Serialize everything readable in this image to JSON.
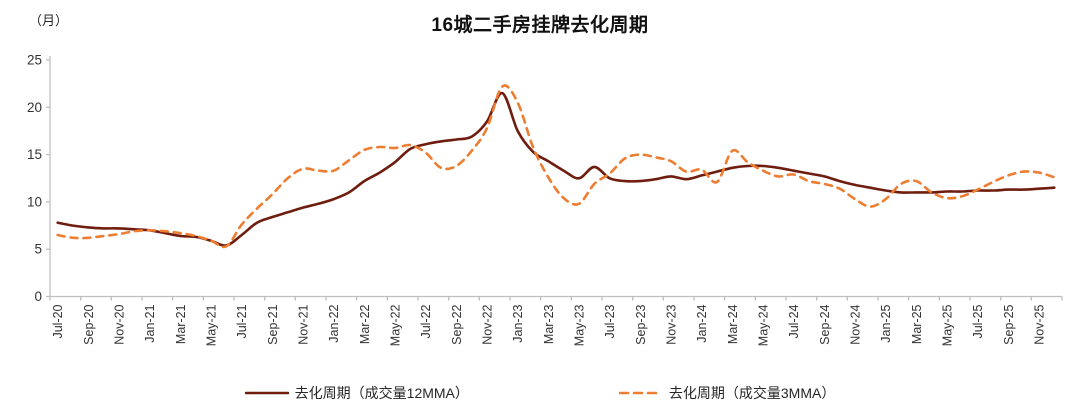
{
  "chart_data": {
    "type": "line",
    "title": "16城二手房挂牌去化周期",
    "y_unit": "（月）",
    "ylim": [
      0,
      25
    ],
    "y_ticks": [
      0,
      5,
      10,
      15,
      20,
      25
    ],
    "grid": "off",
    "legend_position": "bottom",
    "x_label_interval_months": 2,
    "x_tick_labels": [
      "Jul-20",
      "Sep-20",
      "Nov-20",
      "Jan-21",
      "Mar-21",
      "May-21",
      "Jul-21",
      "Sep-21",
      "Nov-21",
      "Jan-22",
      "Mar-22",
      "May-22",
      "Jul-22",
      "Sep-22",
      "Nov-22",
      "Jan-23",
      "Mar-23",
      "May-23",
      "Jul-23",
      "Sep-23",
      "Nov-23",
      "Jan-24",
      "Mar-24",
      "May-24",
      "Jul-24",
      "Sep-24",
      "Nov-24",
      "Jan-25",
      "Mar-25",
      "May-25",
      "Jul-25",
      "Sep-25",
      "Nov-25"
    ],
    "axis_color": "#BFBFBF",
    "tick_text_color": "#333333",
    "series": [
      {
        "name": "去化周期（成交量12MMA）",
        "style": "solid",
        "color": "#6F1D0E",
        "values": [
          7.8,
          7.5,
          7.3,
          7.2,
          7.2,
          7.1,
          7.0,
          6.7,
          6.4,
          6.3,
          5.9,
          5.4,
          6.5,
          7.8,
          8.4,
          8.9,
          9.4,
          9.8,
          10.3,
          11.0,
          12.2,
          13.1,
          14.2,
          15.6,
          16.1,
          16.4,
          16.6,
          16.9,
          18.5,
          21.5,
          17.5,
          15.3,
          14.3,
          13.3,
          12.5,
          13.7,
          12.5,
          12.2,
          12.2,
          12.4,
          12.7,
          12.4,
          12.8,
          13.2,
          13.6,
          13.8,
          13.8,
          13.6,
          13.3,
          13.0,
          12.7,
          12.2,
          11.8,
          11.5,
          11.2,
          11.0,
          11.0,
          11.0,
          11.1,
          11.1,
          11.2,
          11.2,
          11.3,
          11.3,
          11.4,
          11.5
        ]
      },
      {
        "name": "去化周期（成交量3MMA）",
        "style": "dashed",
        "color": "#ED7D31",
        "values": [
          6.5,
          6.2,
          6.2,
          6.4,
          6.6,
          6.9,
          7.0,
          6.9,
          6.7,
          6.4,
          5.9,
          5.3,
          7.6,
          9.3,
          10.8,
          12.5,
          13.5,
          13.3,
          13.3,
          14.4,
          15.5,
          15.8,
          15.7,
          16.0,
          15.2,
          13.6,
          13.8,
          15.4,
          17.8,
          22.2,
          20.5,
          15.8,
          12.6,
          10.4,
          9.8,
          11.9,
          13.0,
          14.6,
          15.0,
          14.7,
          14.3,
          13.2,
          13.4,
          12.1,
          15.4,
          14.2,
          13.3,
          12.7,
          12.9,
          12.2,
          11.9,
          11.4,
          10.3,
          9.5,
          10.3,
          11.9,
          12.2,
          11.0,
          10.4,
          10.6,
          11.3,
          12.1,
          12.8,
          13.2,
          13.1,
          12.6
        ]
      }
    ]
  }
}
